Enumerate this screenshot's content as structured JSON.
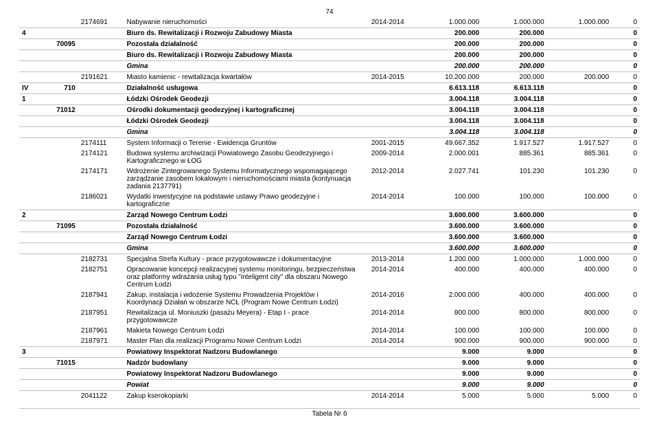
{
  "page_number": "74",
  "footer": "Tabela Nr 6",
  "rows": [
    {
      "sep": false,
      "bold": false,
      "italic": false,
      "c0": "",
      "c1": "",
      "c2": "2174691",
      "c3": "Nabywanie nieruchomości",
      "c4": "2014-2014",
      "c5": "1.000.000",
      "c6": "1.000.000",
      "c7": "1.000.000",
      "c8": "0"
    },
    {
      "sep": true,
      "bold": true,
      "italic": false,
      "c0": "4",
      "c1": "",
      "c2": "",
      "c3": "Biuro ds. Rewitalizacji i Rozwoju Zabudowy Miasta",
      "c4": "",
      "c5": "200.000",
      "c6": "200.000",
      "c7": "",
      "c8": "0"
    },
    {
      "sep": true,
      "bold": true,
      "italic": false,
      "c0": "",
      "c1": "70095",
      "c2": "",
      "c3": "Pozostała działalność",
      "c4": "",
      "c5": "200.000",
      "c6": "200.000",
      "c7": "",
      "c8": "0"
    },
    {
      "sep": true,
      "bold": true,
      "italic": false,
      "c0": "",
      "c1": "",
      "c2": "",
      "c3": "Biuro ds. Rewitalizacji i Rozwoju Zabudowy Miasta",
      "c4": "",
      "c5": "200.000",
      "c6": "200.000",
      "c7": "",
      "c8": "0"
    },
    {
      "sep": true,
      "bold": true,
      "italic": true,
      "c0": "",
      "c1": "",
      "c2": "",
      "c3": "Gmina",
      "c4": "",
      "c5": "200.000",
      "c6": "200.000",
      "c7": "",
      "c8": "0"
    },
    {
      "sep": true,
      "bold": false,
      "italic": false,
      "c0": "",
      "c1": "",
      "c2": "2191621",
      "c3": "Miasto kamienic - rewitalizacja kwartałów",
      "c4": "2014-2015",
      "c5": "10.200.000",
      "c6": "200.000",
      "c7": "200.000",
      "c8": "0"
    },
    {
      "sep": true,
      "bold": true,
      "italic": false,
      "c0": "IV",
      "c1": "710",
      "c2": "",
      "c3": "Działalność usługowa",
      "c4": "",
      "c5": "6.613.118",
      "c6": "6.613.118",
      "c7": "",
      "c8": "0"
    },
    {
      "sep": true,
      "bold": true,
      "italic": false,
      "c0": "1",
      "c1": "",
      "c2": "",
      "c3": "Łódzki Ośrodek Geodezji",
      "c4": "",
      "c5": "3.004.118",
      "c6": "3.004.118",
      "c7": "",
      "c8": "0"
    },
    {
      "sep": true,
      "bold": true,
      "italic": false,
      "c0": "",
      "c1": "71012",
      "c2": "",
      "c3": "Ośrodki dokumentacji geodezyjnej i kartograficznej",
      "c4": "",
      "c5": "3.004.118",
      "c6": "3.004.118",
      "c7": "",
      "c8": "0"
    },
    {
      "sep": true,
      "bold": true,
      "italic": false,
      "c0": "",
      "c1": "",
      "c2": "",
      "c3": "Łódzki Ośrodek Geodezji",
      "c4": "",
      "c5": "3.004.118",
      "c6": "3.004.118",
      "c7": "",
      "c8": "0"
    },
    {
      "sep": true,
      "bold": true,
      "italic": true,
      "c0": "",
      "c1": "",
      "c2": "",
      "c3": "Gmina",
      "c4": "",
      "c5": "3.004.118",
      "c6": "3.004.118",
      "c7": "",
      "c8": "0"
    },
    {
      "sep": true,
      "bold": false,
      "italic": false,
      "c0": "",
      "c1": "",
      "c2": "2174111",
      "c3": "System Informacji o Terenie - Ewidencja Gruntów",
      "c4": "2001-2015",
      "c5": "49.667.352",
      "c6": "1.917.527",
      "c7": "1.917.527",
      "c8": "0"
    },
    {
      "sep": false,
      "bold": false,
      "italic": false,
      "c0": "",
      "c1": "",
      "c2": "2174121",
      "c3": "Budowa systemu archiwizacji Powiatowego Zasobu Geodezyjnego i Kartograficznego w ŁOG",
      "c4": "2009-2014",
      "c5": "2.000.001",
      "c6": "885.361",
      "c7": "885.361",
      "c8": "0"
    },
    {
      "sep": false,
      "bold": false,
      "italic": false,
      "c0": "",
      "c1": "",
      "c2": "2174171",
      "c3": "Wdrożenie Zintegrowanego Systemu Informatycznego wspomagającego zarządzanie zasobem lokalowym i nieruchomościami miasta (kontynuacja zadania 2137791)",
      "c4": "2012-2014",
      "c5": "2.027.741",
      "c6": "101.230",
      "c7": "101.230",
      "c8": "0"
    },
    {
      "sep": false,
      "bold": false,
      "italic": false,
      "c0": "",
      "c1": "",
      "c2": "2186021",
      "c3": "Wydatki inwestycyjne na podstawie ustawy Prawo geodezyjne i kartograficzne",
      "c4": "2014-2014",
      "c5": "100.000",
      "c6": "100.000",
      "c7": "100.000",
      "c8": "0"
    },
    {
      "sep": true,
      "bold": true,
      "italic": false,
      "c0": "2",
      "c1": "",
      "c2": "",
      "c3": "Zarząd Nowego Centrum Łodzi",
      "c4": "",
      "c5": "3.600.000",
      "c6": "3.600.000",
      "c7": "",
      "c8": "0"
    },
    {
      "sep": true,
      "bold": true,
      "italic": false,
      "c0": "",
      "c1": "71095",
      "c2": "",
      "c3": "Pozostała działalność",
      "c4": "",
      "c5": "3.600.000",
      "c6": "3.600.000",
      "c7": "",
      "c8": "0"
    },
    {
      "sep": true,
      "bold": true,
      "italic": false,
      "c0": "",
      "c1": "",
      "c2": "",
      "c3": "Zarząd Nowego Centrum Łodzi",
      "c4": "",
      "c5": "3.600.000",
      "c6": "3.600.000",
      "c7": "",
      "c8": "0"
    },
    {
      "sep": true,
      "bold": true,
      "italic": true,
      "c0": "",
      "c1": "",
      "c2": "",
      "c3": "Gmina",
      "c4": "",
      "c5": "3.600.000",
      "c6": "3.600.000",
      "c7": "",
      "c8": "0"
    },
    {
      "sep": true,
      "bold": false,
      "italic": false,
      "c0": "",
      "c1": "",
      "c2": "2182731",
      "c3": "Specjalna Strefa Kultury - prace przygotowawcze i dokumentacyjne",
      "c4": "2013-2014",
      "c5": "1.200.000",
      "c6": "1.000.000",
      "c7": "1.000.000",
      "c8": "0"
    },
    {
      "sep": false,
      "bold": false,
      "italic": false,
      "c0": "",
      "c1": "",
      "c2": "2182751",
      "c3": "Opracowanie koncepcji realizacyjnej systemu monitoringu, bezpieczeństwa oraz platformy wdrażania usług typu \"inteligent city\" dla obszaru Nowego Centrum Łodzi",
      "c4": "2014-2014",
      "c5": "400.000",
      "c6": "400.000",
      "c7": "400.000",
      "c8": "0"
    },
    {
      "sep": false,
      "bold": false,
      "italic": false,
      "c0": "",
      "c1": "",
      "c2": "2187941",
      "c3": "Zakup, instalacja i wdożenie Systemu Prowadzenia Projektów i Koordynacji Działań w obszarze NCŁ (Program Nowe Centrum Łodzi)",
      "c4": "2014-2016",
      "c5": "2.000.000",
      "c6": "400.000",
      "c7": "400.000",
      "c8": "0"
    },
    {
      "sep": false,
      "bold": false,
      "italic": false,
      "c0": "",
      "c1": "",
      "c2": "2187951",
      "c3": "Rewitalizacja ul. Moniuszki (pasażu Meyera) - Etap I - prace przygotowawcze",
      "c4": "2014-2014",
      "c5": "800.000",
      "c6": "800.000",
      "c7": "800.000",
      "c8": "0"
    },
    {
      "sep": false,
      "bold": false,
      "italic": false,
      "c0": "",
      "c1": "",
      "c2": "2187961",
      "c3": "Makieta Nowego Centrum Łodzi",
      "c4": "2014-2014",
      "c5": "100.000",
      "c6": "100.000",
      "c7": "100.000",
      "c8": "0"
    },
    {
      "sep": false,
      "bold": false,
      "italic": false,
      "c0": "",
      "c1": "",
      "c2": "2187971",
      "c3": "Master Plan dla realizacji Programu Nowe Centrum Łodzi",
      "c4": "2014-2014",
      "c5": "900.000",
      "c6": "900.000",
      "c7": "900.000",
      "c8": "0"
    },
    {
      "sep": true,
      "bold": true,
      "italic": false,
      "c0": "3",
      "c1": "",
      "c2": "",
      "c3": "Powiatowy Inspektorat Nadzoru Budowlanego",
      "c4": "",
      "c5": "9.000",
      "c6": "9.000",
      "c7": "",
      "c8": "0"
    },
    {
      "sep": true,
      "bold": true,
      "italic": false,
      "c0": "",
      "c1": "71015",
      "c2": "",
      "c3": "Nadzór budowlany",
      "c4": "",
      "c5": "9.000",
      "c6": "9.000",
      "c7": "",
      "c8": "0"
    },
    {
      "sep": true,
      "bold": true,
      "italic": false,
      "c0": "",
      "c1": "",
      "c2": "",
      "c3": "Powiatowy Inspektorat Nadzoru Budowlanego",
      "c4": "",
      "c5": "9.000",
      "c6": "9.000",
      "c7": "",
      "c8": "0"
    },
    {
      "sep": true,
      "bold": true,
      "italic": true,
      "c0": "",
      "c1": "",
      "c2": "",
      "c3": "Powiat",
      "c4": "",
      "c5": "9.000",
      "c6": "9.000",
      "c7": "",
      "c8": "0"
    },
    {
      "sep": true,
      "bold": false,
      "italic": false,
      "c0": "",
      "c1": "",
      "c2": "2041122",
      "c3": "Zakup kserokopiarki",
      "c4": "2014-2014",
      "c5": "5.000",
      "c6": "5.000",
      "c7": "5.000",
      "c8": "0"
    }
  ]
}
